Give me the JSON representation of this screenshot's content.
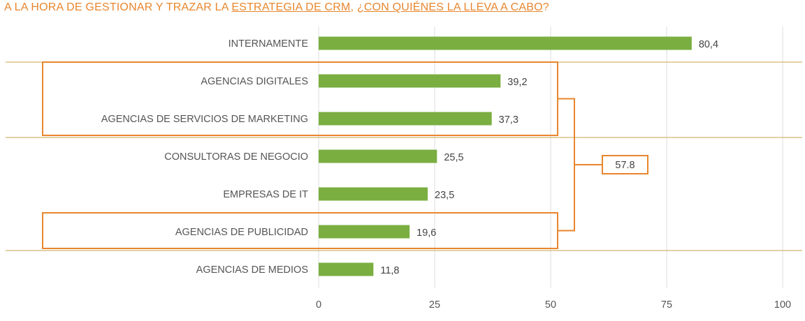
{
  "title": {
    "part1": "A LA HORA DE GESTIONAR Y TRAZAR LA ",
    "part2": "ESTRATEGIA DE CRM",
    "part3": ", ",
    "part4": "¿CON QUIÉNES LA LLEVA A CABO",
    "part5": "?"
  },
  "colors": {
    "bar": "#7aae41",
    "accent": "#e8862d",
    "separator": "#c9a24a",
    "grid": "#dddddd"
  },
  "chart_data": {
    "type": "bar",
    "orientation": "horizontal",
    "categories": [
      "INTERNAMENTE",
      "AGENCIAS DIGITALES",
      "AGENCIAS DE SERVICIOS DE MARKETING",
      "CONSULTORAS DE NEGOCIO",
      "EMPRESAS DE IT",
      "AGENCIAS DE PUBLICIDAD",
      "AGENCIAS DE MEDIOS"
    ],
    "values": [
      80.4,
      39.2,
      37.3,
      25.5,
      23.5,
      19.6,
      11.8
    ],
    "value_labels": [
      "80,4",
      "39,2",
      "37,3",
      "25,5",
      "23,5",
      "19,6",
      "11,8"
    ],
    "xlim": [
      0,
      100
    ],
    "xticks": [
      "0",
      "25",
      "50",
      "75",
      "100"
    ],
    "grid": true,
    "annotation": {
      "text": "57.8",
      "highlighted_categories": [
        "AGENCIAS DIGITALES",
        "AGENCIAS DE SERVICIOS DE MARKETING",
        "AGENCIAS DE PUBLICIDAD"
      ]
    }
  }
}
